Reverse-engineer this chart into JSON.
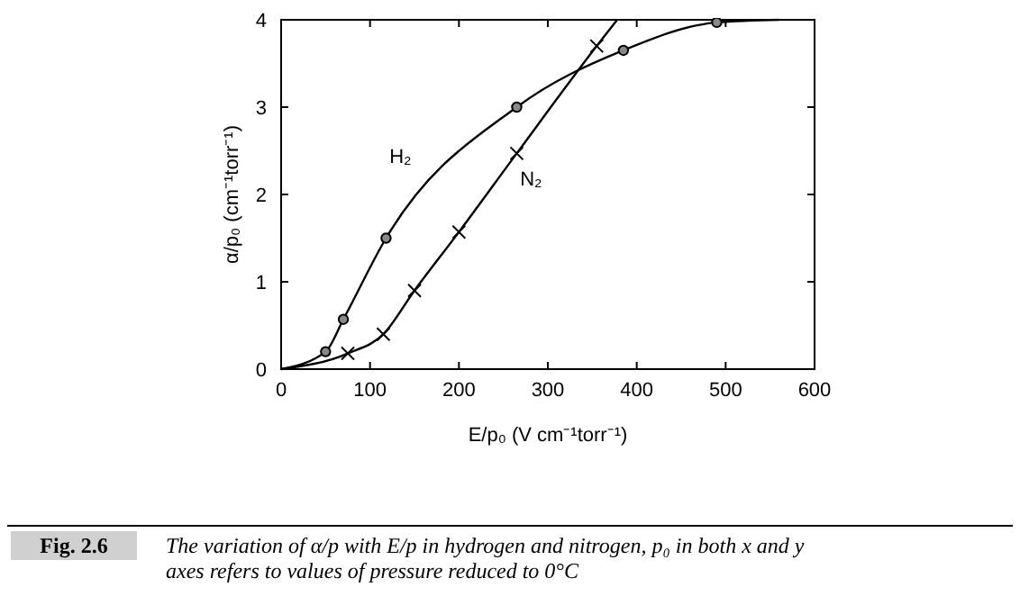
{
  "chart_data": {
    "type": "line",
    "xlabel": "E/p₀ (V cm⁻¹torr⁻¹)",
    "ylabel": "α/p₀ (cm⁻¹torr⁻¹)",
    "xlim": [
      0,
      600
    ],
    "ylim": [
      0,
      4
    ],
    "xticks": [
      0,
      100,
      200,
      300,
      400,
      500,
      600
    ],
    "yticks": [
      0,
      1,
      2,
      3,
      4
    ],
    "grid": false,
    "series": [
      {
        "name": "H₂",
        "color": "#000000",
        "marker": "none",
        "x": [
          0,
          50,
          70,
          118,
          265,
          385,
          490,
          560
        ],
        "values": [
          0,
          0.2,
          0.57,
          1.5,
          3.0,
          3.65,
          3.97,
          4.0
        ]
      },
      {
        "type": "scatter",
        "color": "#000000",
        "marker": "circle",
        "x": [
          50,
          70,
          118,
          265,
          385,
          490
        ],
        "values": [
          0.2,
          0.57,
          1.5,
          3.0,
          3.65,
          3.97
        ]
      },
      {
        "name": "N₂",
        "color": "#000000",
        "marker": "none",
        "x": [
          0,
          75,
          115,
          150,
          200,
          265,
          355,
          378
        ],
        "values": [
          0,
          0.18,
          0.4,
          0.9,
          1.57,
          2.47,
          3.7,
          4.0
        ]
      },
      {
        "type": "scatter",
        "color": "#000000",
        "marker": "cross",
        "x": [
          75,
          115,
          150,
          200,
          265,
          355
        ],
        "values": [
          0.18,
          0.4,
          0.9,
          1.57,
          2.47,
          3.7
        ]
      }
    ],
    "annotations": [
      "Fig. 2.6",
      "The variation of α/p with E/p in hydrogen and nitrogen, p₀ in both x and y axes refers to values of pressure reduced to 0°C"
    ]
  }
}
